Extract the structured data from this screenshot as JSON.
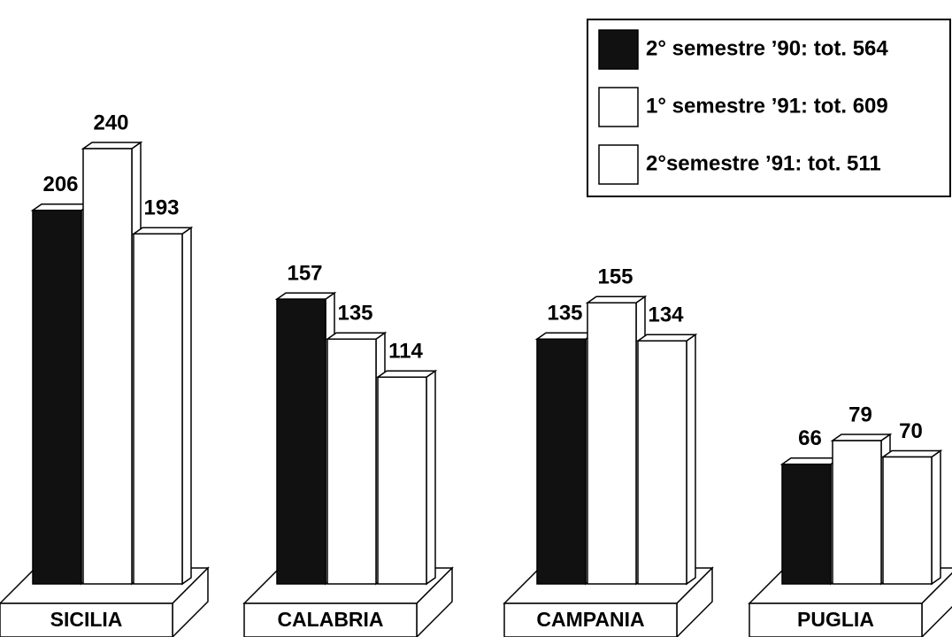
{
  "chart_data": {
    "type": "bar3d",
    "categories": [
      "SICILIA",
      "CALABRIA",
      "CAMPANIA",
      "PUGLIA"
    ],
    "series": [
      {
        "name": "2° semestre ’90: tot. 564",
        "color": "#111111",
        "values": [
          206,
          157,
          135,
          66
        ]
      },
      {
        "name": "1° semestre ’91: tot. 609",
        "color": "#ffffff",
        "values": [
          240,
          135,
          155,
          79
        ]
      },
      {
        "name": "2°semestre ’91: tot. 511",
        "color": "#ffffff",
        "values": [
          193,
          114,
          134,
          70
        ]
      }
    ],
    "legend": "top-right"
  }
}
